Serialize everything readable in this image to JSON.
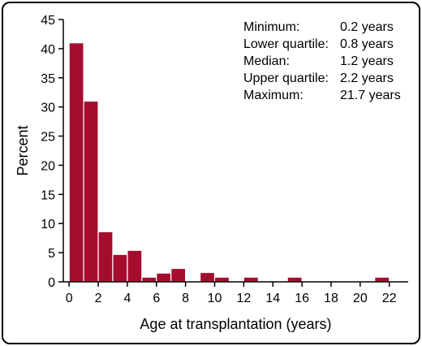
{
  "chart_data": {
    "type": "bar",
    "title": "",
    "xlabel": "Age at transplantation (years)",
    "ylabel": "Percent",
    "bin_width": 1,
    "bins": [
      {
        "start": 0,
        "value": 41.0
      },
      {
        "start": 1,
        "value": 31.0
      },
      {
        "start": 2,
        "value": 8.6
      },
      {
        "start": 3,
        "value": 4.7
      },
      {
        "start": 4,
        "value": 5.4
      },
      {
        "start": 5,
        "value": 0.8
      },
      {
        "start": 6,
        "value": 1.5
      },
      {
        "start": 7,
        "value": 2.3
      },
      {
        "start": 8,
        "value": 0.0
      },
      {
        "start": 9,
        "value": 1.6
      },
      {
        "start": 10,
        "value": 0.8
      },
      {
        "start": 11,
        "value": 0.0
      },
      {
        "start": 12,
        "value": 0.8
      },
      {
        "start": 13,
        "value": 0.0
      },
      {
        "start": 14,
        "value": 0.0
      },
      {
        "start": 15,
        "value": 0.8
      },
      {
        "start": 16,
        "value": 0.0
      },
      {
        "start": 17,
        "value": 0.0
      },
      {
        "start": 18,
        "value": 0.0
      },
      {
        "start": 19,
        "value": 0.0
      },
      {
        "start": 20,
        "value": 0.0
      },
      {
        "start": 21,
        "value": 0.8
      }
    ],
    "xlim": [
      -0.4,
      23.3
    ],
    "ylim": [
      0,
      45
    ],
    "xticks": [
      0,
      2,
      4,
      6,
      8,
      10,
      12,
      14,
      16,
      18,
      20,
      22
    ],
    "yticks": [
      0,
      5,
      10,
      15,
      20,
      25,
      30,
      35,
      40,
      45
    ],
    "bar_color": "#a50d2e",
    "grid": false,
    "stats_box": {
      "placement": "top-right",
      "rows": [
        {
          "label": "Minimum:",
          "value": "0.2 years"
        },
        {
          "label": "Lower quartile:",
          "value": "0.8 years"
        },
        {
          "label": "Median:",
          "value": "1.2 years"
        },
        {
          "label": "Upper quartile:",
          "value": "2.2 years"
        },
        {
          "label": "Maximum:",
          "value": "21.7 years"
        }
      ]
    }
  }
}
